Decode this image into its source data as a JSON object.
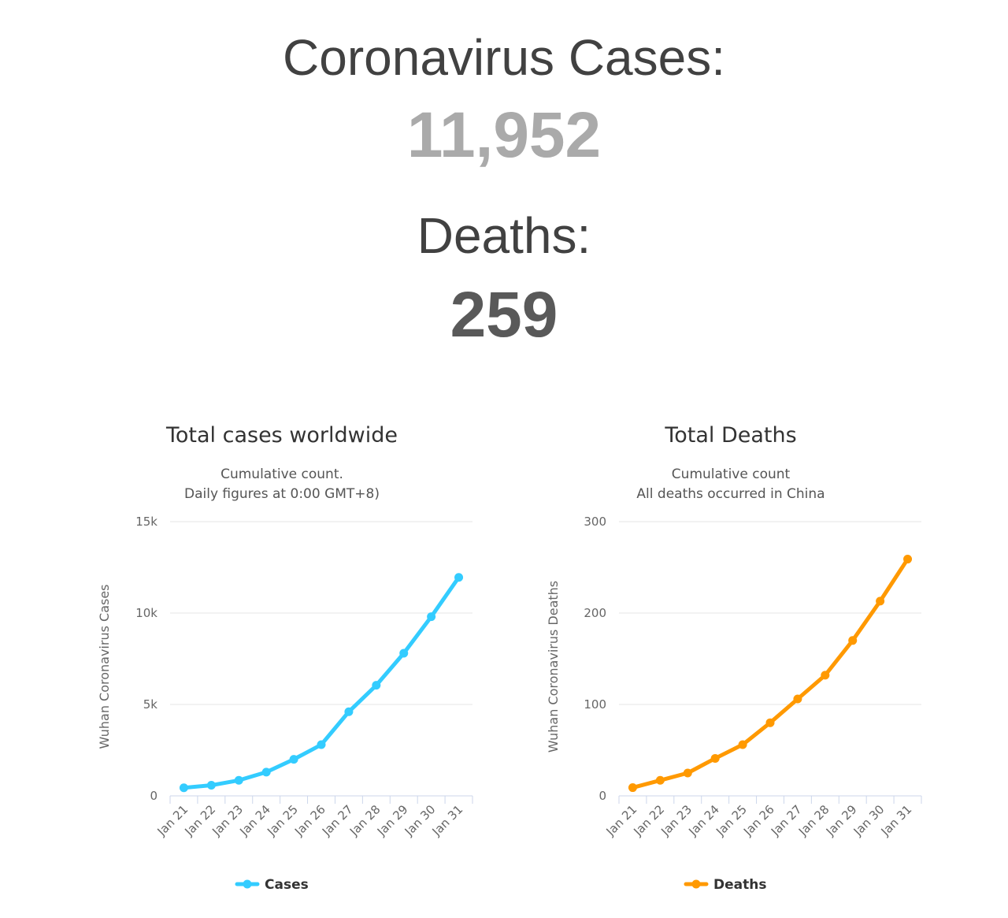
{
  "summary": {
    "cases_label": "Coronavirus Cases:",
    "cases_value": "11,952",
    "deaths_label": "Deaths:",
    "deaths_value": "259"
  },
  "chart_data": [
    {
      "type": "line",
      "title": "Total cases worldwide",
      "subtitle_lines": [
        "Cumulative count.",
        "Daily figures at 0:00 GMT+8)"
      ],
      "xlabel": "",
      "ylabel": "Wuhan Coronavirus Cases",
      "categories": [
        "Jan 21",
        "Jan 22",
        "Jan 23",
        "Jan 24",
        "Jan 25",
        "Jan 26",
        "Jan 27",
        "Jan 28",
        "Jan 29",
        "Jan 30",
        "Jan 31"
      ],
      "ylim": [
        0,
        15000
      ],
      "y_ticks": [
        0,
        5000,
        10000,
        15000
      ],
      "y_tick_labels": [
        "0",
        "5k",
        "10k",
        "15k"
      ],
      "grid": true,
      "legend_position": "bottom",
      "series": [
        {
          "name": "Cases",
          "color": "#33ccff",
          "values": [
            440,
            580,
            850,
            1300,
            2000,
            2800,
            4600,
            6050,
            7800,
            9800,
            11952
          ]
        }
      ]
    },
    {
      "type": "line",
      "title": "Total Deaths",
      "subtitle_lines": [
        "Cumulative count",
        "All deaths occurred in China"
      ],
      "xlabel": "",
      "ylabel": "Wuhan Coronavirus Deaths",
      "categories": [
        "Jan 21",
        "Jan 22",
        "Jan 23",
        "Jan 24",
        "Jan 25",
        "Jan 26",
        "Jan 27",
        "Jan 28",
        "Jan 29",
        "Jan 30",
        "Jan 31"
      ],
      "ylim": [
        0,
        300
      ],
      "y_ticks": [
        0,
        100,
        200,
        300
      ],
      "y_tick_labels": [
        "0",
        "100",
        "200",
        "300"
      ],
      "grid": true,
      "legend_position": "bottom",
      "series": [
        {
          "name": "Deaths",
          "color": "#ff9900",
          "values": [
            9,
            17,
            25,
            41,
            56,
            80,
            106,
            132,
            170,
            213,
            259
          ]
        }
      ]
    }
  ]
}
